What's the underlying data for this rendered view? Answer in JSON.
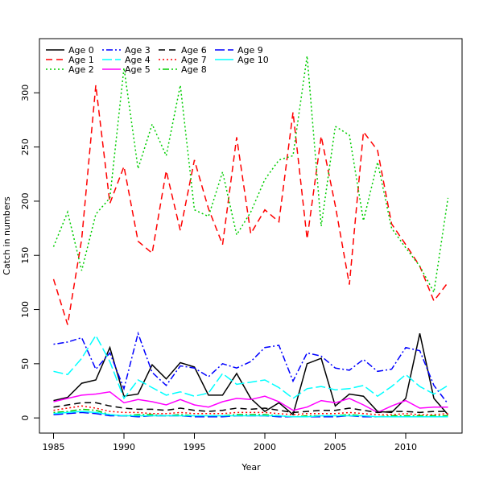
{
  "chart_data": {
    "type": "line",
    "title": "",
    "xlabel": "Year",
    "ylabel": "Catch in numbers",
    "xlim": [
      1984,
      2014
    ],
    "ylim": [
      -14,
      350
    ],
    "xticks": [
      1985,
      1990,
      1995,
      2000,
      2005,
      2010
    ],
    "yticks": [
      0,
      50,
      100,
      150,
      200,
      250,
      300
    ],
    "grid": false,
    "legend": {
      "position": "top-left",
      "columns": 4
    },
    "x": [
      1985,
      1986,
      1987,
      1988,
      1989,
      1990,
      1991,
      1992,
      1993,
      1994,
      1995,
      1996,
      1997,
      1998,
      1999,
      2000,
      2001,
      2002,
      2003,
      2004,
      2005,
      2006,
      2007,
      2008,
      2009,
      2010,
      2011,
      2012,
      2013
    ],
    "series": [
      {
        "name": "Age 0",
        "color": "#000000",
        "dash": "solid",
        "values": [
          16,
          19,
          32,
          35,
          65,
          20,
          22,
          49,
          36,
          51,
          47,
          21,
          21,
          41,
          18,
          6,
          14,
          3,
          50,
          55,
          11,
          22,
          20,
          6,
          5,
          18,
          78,
          18,
          3
        ]
      },
      {
        "name": "Age 1",
        "color": "#ff0000",
        "dash": "dashed",
        "values": [
          128,
          86,
          165,
          307,
          198,
          232,
          163,
          152,
          228,
          173,
          238,
          193,
          160,
          259,
          170,
          192,
          181,
          282,
          165,
          260,
          196,
          123,
          264,
          247,
          179,
          160,
          140,
          108,
          125
        ]
      },
      {
        "name": "Age 2",
        "color": "#00cd00",
        "dash": "dotted",
        "values": [
          158,
          190,
          136,
          188,
          203,
          323,
          230,
          271,
          242,
          307,
          192,
          186,
          227,
          169,
          190,
          220,
          238,
          242,
          334,
          177,
          269,
          261,
          182,
          236,
          175,
          157,
          140,
          116,
          203
        ]
      },
      {
        "name": "Age 3",
        "color": "#0000ff",
        "dash": "dotdash",
        "values": [
          68,
          70,
          74,
          45,
          60,
          27,
          78,
          42,
          30,
          48,
          46,
          38,
          50,
          46,
          52,
          65,
          67,
          34,
          60,
          57,
          46,
          44,
          54,
          43,
          45,
          65,
          62,
          30,
          13
        ]
      },
      {
        "name": "Age 4",
        "color": "#00ffff",
        "dash": "longdash",
        "values": [
          43,
          40,
          55,
          76,
          52,
          18,
          35,
          28,
          21,
          24,
          20,
          23,
          41,
          31,
          33,
          35,
          28,
          18,
          27,
          29,
          26,
          27,
          30,
          20,
          29,
          40,
          29,
          22,
          30
        ]
      },
      {
        "name": "Age 5",
        "color": "#ff00ff",
        "dash": "solid",
        "values": [
          15,
          18,
          21,
          22,
          24,
          14,
          17,
          15,
          12,
          17,
          12,
          10,
          15,
          18,
          17,
          20,
          15,
          7,
          10,
          16,
          14,
          18,
          12,
          5,
          11,
          16,
          9,
          10,
          10
        ]
      },
      {
        "name": "Age 6",
        "color": "#000000",
        "dash": "dashed",
        "values": [
          10,
          12,
          14,
          14,
          11,
          9,
          8,
          8,
          7,
          9,
          7,
          6,
          7,
          9,
          8,
          9,
          7,
          5,
          6,
          7,
          7,
          9,
          7,
          5,
          6,
          6,
          5,
          6,
          6
        ]
      },
      {
        "name": "Age 7",
        "color": "#ff0000",
        "dash": "dotted",
        "values": [
          7,
          9,
          11,
          9,
          6,
          5,
          5,
          4,
          4,
          5,
          4,
          4,
          4,
          5,
          5,
          5,
          4,
          3,
          4,
          4,
          4,
          5,
          4,
          3,
          3,
          4,
          3,
          3,
          4
        ]
      },
      {
        "name": "Age 8",
        "color": "#00cd00",
        "dash": "dotdash",
        "values": [
          5,
          6,
          8,
          7,
          3,
          2,
          3,
          3,
          2,
          3,
          2,
          2,
          2,
          3,
          3,
          3,
          2,
          1,
          2,
          2,
          2,
          3,
          2,
          1,
          2,
          2,
          2,
          2,
          2
        ]
      },
      {
        "name": "Age 9",
        "color": "#0000ff",
        "dash": "longdash",
        "values": [
          3,
          4,
          5,
          4,
          2,
          2,
          1,
          2,
          2,
          2,
          1,
          1,
          1,
          2,
          2,
          2,
          1,
          1,
          1,
          1,
          1,
          2,
          1,
          1,
          1,
          1,
          1,
          1,
          1
        ]
      },
      {
        "name": "Age 10",
        "color": "#00ffff",
        "dash": "solid",
        "values": [
          4,
          5,
          6,
          5,
          3,
          2,
          2,
          2,
          2,
          2,
          2,
          2,
          2,
          2,
          2,
          2,
          2,
          1,
          1,
          2,
          2,
          2,
          2,
          1,
          1,
          1,
          1,
          1,
          1
        ]
      }
    ]
  }
}
